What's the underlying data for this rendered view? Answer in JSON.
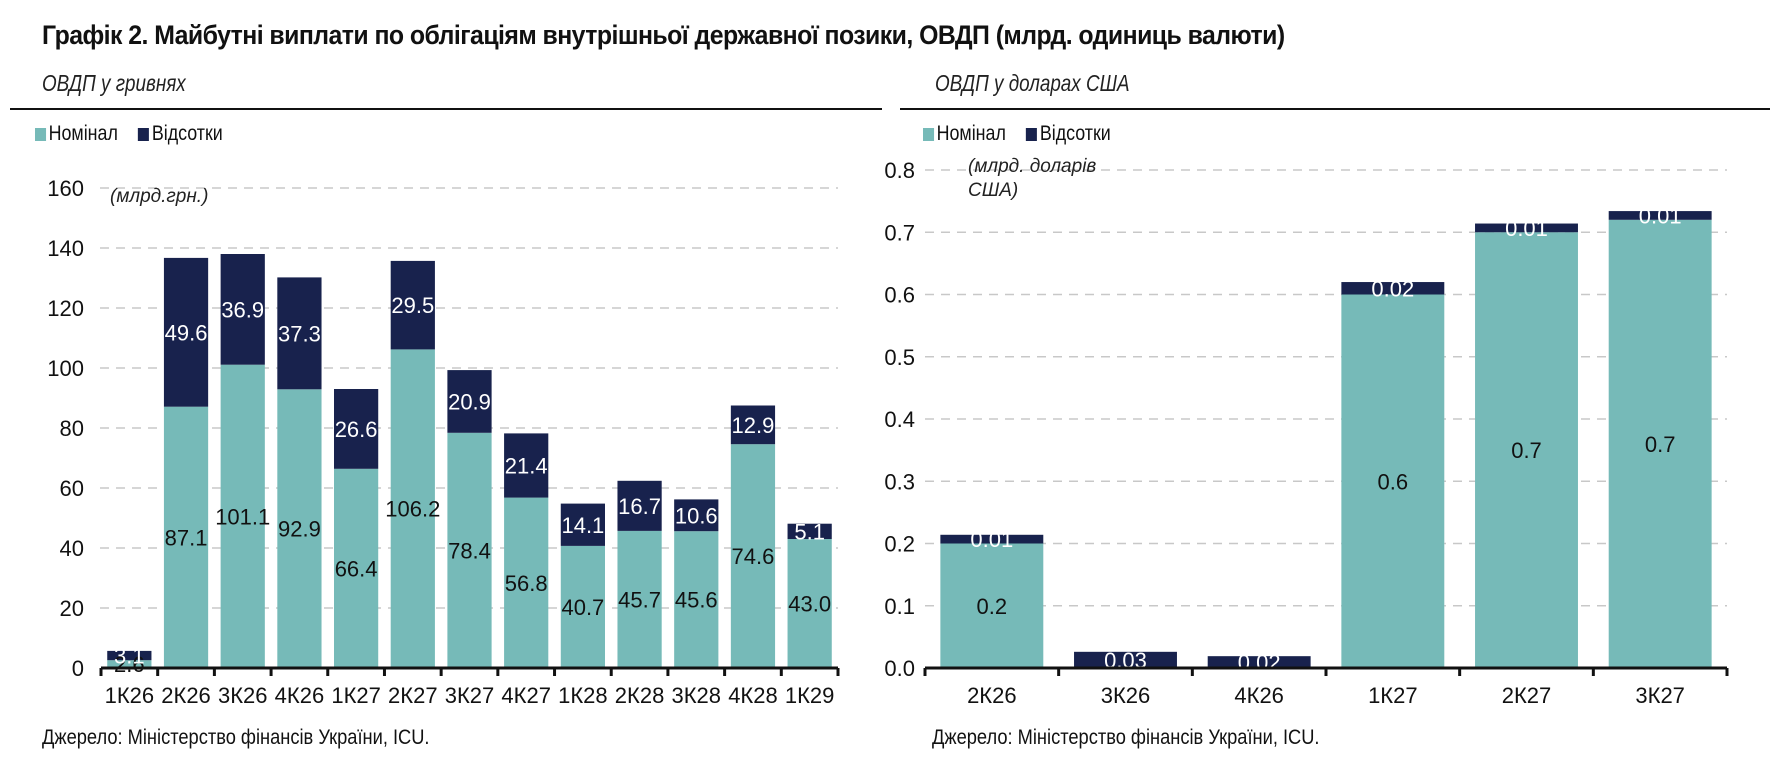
{
  "title": "Графік 2. Майбутні виплати по облігаціям внутрішньої державної позики, ОВДП (млрд. одиниць валюти)",
  "colors": {
    "nominal": "#76bab8",
    "interest": "#18224d",
    "grid": "#c8c8c8"
  },
  "chart_data": [
    {
      "type": "bar",
      "stacked": true,
      "title": "ОВДП у гривнях",
      "unit_label": "(млрд.грн.)",
      "xlabel": "",
      "ylabel": "",
      "ylim": [
        0,
        160
      ],
      "yticks": [
        "0",
        "20",
        "40",
        "60",
        "80",
        "100",
        "120",
        "140",
        "160"
      ],
      "grid": true,
      "legend": "top-left",
      "categories": [
        "1К26",
        "2К26",
        "3К26",
        "4К26",
        "1К27",
        "2К27",
        "3К27",
        "4К27",
        "1К28",
        "2К28",
        "3К28",
        "4К28",
        "1К29"
      ],
      "series": [
        {
          "name": "Номінал",
          "values": [
            2.6,
            87.1,
            101.1,
            92.9,
            66.4,
            106.2,
            78.4,
            56.8,
            40.7,
            45.7,
            45.6,
            74.6,
            43.0
          ],
          "labels": [
            "2.6",
            "87.1",
            "101.1",
            "92.9",
            "66.4",
            "106.2",
            "78.4",
            "56.8",
            "40.7",
            "45.7",
            "45.6",
            "74.6",
            "43.0"
          ]
        },
        {
          "name": "Відсотки",
          "values": [
            3.1,
            49.6,
            36.9,
            37.3,
            26.6,
            29.5,
            20.9,
            21.4,
            14.1,
            16.7,
            10.6,
            12.9,
            5.1
          ],
          "labels": [
            "3.1",
            "49.6",
            "36.9",
            "37.3",
            "26.6",
            "29.5",
            "20.9",
            "21.4",
            "14.1",
            "16.7",
            "10.6",
            "12.9",
            "5.1"
          ]
        }
      ],
      "source": "Джерело: Міністерство фінансів України, ICU."
    },
    {
      "type": "bar",
      "stacked": true,
      "title": "ОВДП у доларах США",
      "unit_label": "(млрд. доларів США)",
      "xlabel": "",
      "ylabel": "",
      "ylim": [
        0,
        0.8
      ],
      "yticks": [
        "0.0",
        "0.1",
        "0.2",
        "0.3",
        "0.4",
        "0.5",
        "0.6",
        "0.7",
        "0.8"
      ],
      "grid": true,
      "legend": "top-left",
      "categories": [
        "2К26",
        "3К26",
        "4К26",
        "1К27",
        "2К27",
        "3К27"
      ],
      "series": [
        {
          "name": "Номінал",
          "values": [
            0.2,
            0,
            0,
            0.6,
            0.7,
            0.72
          ],
          "labels": [
            "0.2",
            "",
            "",
            "0.6",
            "0.7",
            "0.7"
          ]
        },
        {
          "name": "Відсотки",
          "values": [
            0.014,
            0.026,
            0.019,
            0.02,
            0.014,
            0.014
          ],
          "labels": [
            "0.01",
            "0.03",
            "0.02",
            "0.02",
            "0.01",
            "0.01"
          ]
        }
      ],
      "source": "Джерело: Міністерство фінансів України, ICU."
    }
  ]
}
